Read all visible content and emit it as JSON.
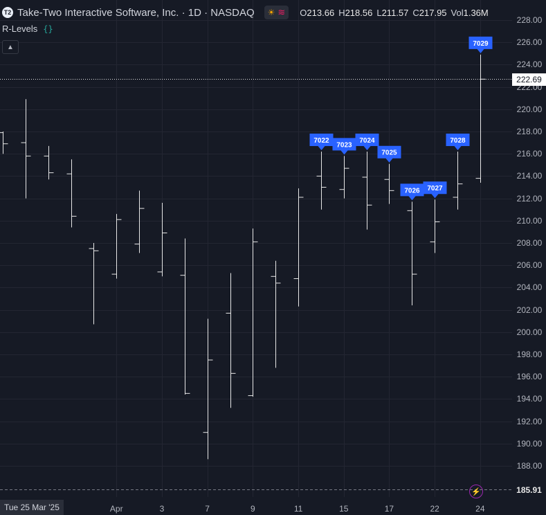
{
  "header": {
    "logo_text": "T2",
    "title": "Take-Two Interactive Software, Inc. · 1D · NASDAQ",
    "ohlc": [
      {
        "label": "O",
        "value": "213.66"
      },
      {
        "label": "H",
        "value": "218.56"
      },
      {
        "label": "L",
        "value": "211.57"
      },
      {
        "label": "C",
        "value": "217.95"
      },
      {
        "label": "Vol",
        "value": "1.36M"
      }
    ]
  },
  "indicator": {
    "name": "R-Levels"
  },
  "collapse_button": {
    "icon": "chevron-up-icon"
  },
  "colors": {
    "background": "#161a25",
    "grid": "#232632",
    "bar": "#e8e8e8",
    "label": "#2962ff",
    "last_price_tag": "#ffffff",
    "low_tag": "#161a25"
  },
  "price_axis": {
    "ticks": [
      "228.00",
      "226.00",
      "224.00",
      "222.00",
      "220.00",
      "218.00",
      "216.00",
      "214.00",
      "212.00",
      "210.00",
      "208.00",
      "206.00",
      "204.00",
      "202.00",
      "200.00",
      "198.00",
      "196.00",
      "194.00",
      "192.00",
      "190.00",
      "188.00"
    ],
    "last_price_tag": "222.69",
    "low_price_tag": "185.91"
  },
  "time_axis": {
    "ticks": [
      "Apr",
      "3",
      "7",
      "9",
      "11",
      "15",
      "17",
      "22",
      "24"
    ],
    "current_date": "Tue 25 Mar '25"
  },
  "chart_data": {
    "type": "ohlc",
    "bars": [
      {
        "date": "2025-03-24",
        "open": 217.9,
        "high": 218.0,
        "low": 216.0,
        "close": 216.9
      },
      {
        "date": "2025-03-25",
        "open": 217.0,
        "high": 220.9,
        "low": 212.0,
        "close": 215.8
      },
      {
        "date": "2025-03-26",
        "open": 215.8,
        "high": 216.7,
        "low": 213.7,
        "close": 214.3
      },
      {
        "date": "2025-03-27",
        "open": 214.2,
        "high": 215.5,
        "low": 209.4,
        "close": 210.4
      },
      {
        "date": "2025-03-28",
        "open": 207.5,
        "high": 208.0,
        "low": 200.7,
        "close": 207.3
      },
      {
        "date": "2025-03-31",
        "open": 205.2,
        "high": 210.6,
        "low": 204.8,
        "close": 210.1
      },
      {
        "date": "2025-04-01",
        "open": 207.9,
        "high": 212.7,
        "low": 207.1,
        "close": 211.1
      },
      {
        "date": "2025-04-02",
        "open": 205.4,
        "high": 211.6,
        "low": 205.0,
        "close": 208.9
      },
      {
        "date": "2025-04-03",
        "open": 205.1,
        "high": 208.4,
        "low": 194.4,
        "close": 194.5
      },
      {
        "date": "2025-04-04",
        "open": 191.0,
        "high": 201.2,
        "low": 188.6,
        "close": 197.5
      },
      {
        "date": "2025-04-07",
        "open": 201.7,
        "high": 205.3,
        "low": 193.2,
        "close": 196.3
      },
      {
        "date": "2025-04-08",
        "open": 194.3,
        "high": 209.3,
        "low": 194.2,
        "close": 208.1
      },
      {
        "date": "2025-04-09",
        "open": 205.0,
        "high": 206.4,
        "low": 196.8,
        "close": 204.4
      },
      {
        "date": "2025-04-10",
        "open": 204.8,
        "high": 212.9,
        "low": 202.3,
        "close": 212.1
      },
      {
        "date": "2025-04-11",
        "open": 214.0,
        "high": 216.2,
        "low": 211.0,
        "close": 213.0
      },
      {
        "date": "2025-04-14",
        "open": 212.8,
        "high": 215.8,
        "low": 212.0,
        "close": 214.7
      },
      {
        "date": "2025-04-15",
        "open": 213.9,
        "high": 216.2,
        "low": 209.2,
        "close": 211.4
      },
      {
        "date": "2025-04-16",
        "open": 213.7,
        "high": 215.1,
        "low": 211.5,
        "close": 212.7
      },
      {
        "date": "2025-04-17",
        "open": 210.9,
        "high": 211.7,
        "low": 202.4,
        "close": 205.2
      },
      {
        "date": "2025-04-21",
        "open": 208.1,
        "high": 211.9,
        "low": 207.1,
        "close": 209.9
      },
      {
        "date": "2025-04-22",
        "open": 212.1,
        "high": 216.2,
        "low": 211.0,
        "close": 213.3
      },
      {
        "date": "2025-04-23",
        "open": 213.8,
        "high": 224.9,
        "low": 213.4,
        "close": 222.7
      }
    ],
    "labels": [
      {
        "bar_index": 14,
        "text": "7022"
      },
      {
        "bar_index": 15,
        "text": "7023"
      },
      {
        "bar_index": 16,
        "text": "7024"
      },
      {
        "bar_index": 17,
        "text": "7025"
      },
      {
        "bar_index": 18,
        "text": "7026"
      },
      {
        "bar_index": 19,
        "text": "7027"
      },
      {
        "bar_index": 20,
        "text": "7028"
      },
      {
        "bar_index": 21,
        "text": "7029"
      }
    ],
    "last_price": 222.69,
    "low_line": 185.91,
    "ylim": [
      186.5,
      229.0
    ],
    "grid": true
  }
}
